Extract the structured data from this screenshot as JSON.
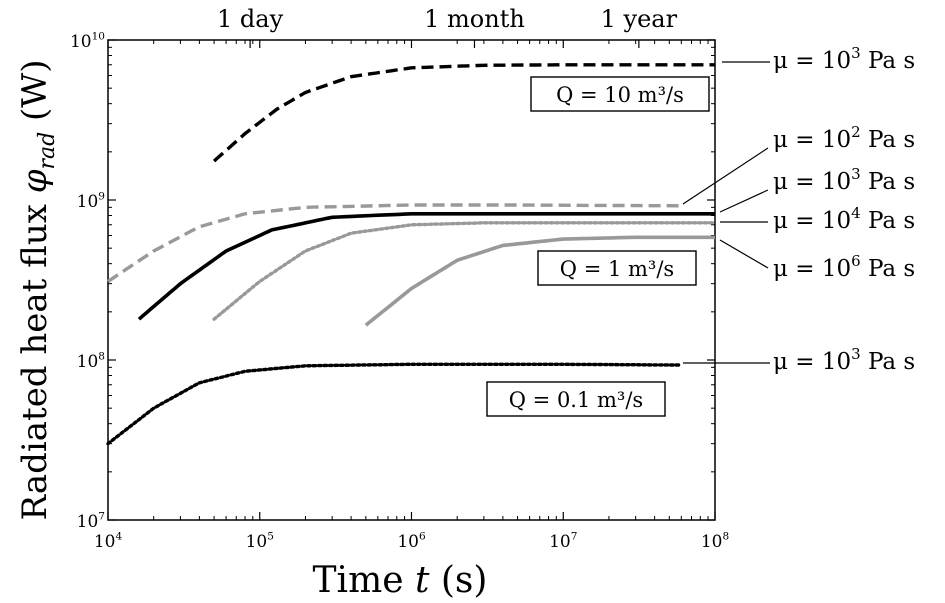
{
  "chart_data": {
    "type": "line",
    "xlabel": "Time t (s)",
    "ylabel": "Radiated heat flux φrad (W)",
    "xscale": "log",
    "yscale": "log",
    "xlim": [
      10000,
      100000000
    ],
    "ylim": [
      10000000,
      10000000000
    ],
    "x_ticks": [
      {
        "value": 10000,
        "label": "10",
        "exp": "4"
      },
      {
        "value": 100000,
        "label": "10",
        "exp": "5"
      },
      {
        "value": 1000000,
        "label": "10",
        "exp": "6"
      },
      {
        "value": 10000000,
        "label": "10",
        "exp": "7"
      },
      {
        "value": 100000000,
        "label": "10",
        "exp": "8"
      }
    ],
    "y_ticks": [
      {
        "value": 10000000,
        "label": "10",
        "exp": "7"
      },
      {
        "value": 100000000,
        "label": "10",
        "exp": "8"
      },
      {
        "value": 1000000000,
        "label": "10",
        "exp": "9"
      },
      {
        "value": 10000000000,
        "label": "10",
        "exp": "10"
      }
    ],
    "top_axis_ticks": [
      {
        "value": 86400,
        "label": "1 day"
      },
      {
        "value": 2600000,
        "label": "1 month"
      },
      {
        "value": 31500000,
        "label": "1 year"
      }
    ],
    "grid": false,
    "series": [
      {
        "group": "Q = 10 m3/s",
        "label": "μ = 10^3 Pa s",
        "color": "#000000",
        "style": "dashed",
        "x": [
          50000,
          80000,
          130000,
          200000,
          400000,
          1000000,
          3000000,
          10000000,
          100000000
        ],
        "y": [
          1750000000,
          2600000000,
          3700000000,
          4700000000,
          5900000000,
          6700000000,
          6950000000,
          7000000000,
          7000000000
        ]
      },
      {
        "group": "Q = 1 m3/s",
        "label": "μ = 10^2 Pa s",
        "color": "#999999",
        "style": "dashed",
        "x": [
          10000,
          20000,
          40000,
          80000,
          200000,
          1000000,
          5000000,
          60000000
        ],
        "y": [
          310000000,
          480000000,
          680000000,
          820000000,
          900000000,
          930000000,
          930000000,
          920000000
        ]
      },
      {
        "group": "Q = 1 m3/s",
        "label": "μ = 10^3 Pa s",
        "color": "#000000",
        "style": "solid",
        "x": [
          16000,
          30000,
          60000,
          120000,
          300000,
          1000000,
          10000000,
          100000000
        ],
        "y": [
          180000000,
          300000000,
          480000000,
          650000000,
          780000000,
          820000000,
          820000000,
          820000000
        ]
      },
      {
        "group": "Q = 1 m3/s",
        "label": "μ = 10^4 Pa s",
        "color": "#999999",
        "style": "dotted",
        "x": [
          50000,
          100000,
          200000,
          400000,
          1000000,
          3000000,
          10000000,
          100000000
        ],
        "y": [
          180000000,
          310000000,
          480000000,
          620000000,
          700000000,
          720000000,
          720000000,
          720000000
        ]
      },
      {
        "group": "Q = 1 m3/s",
        "label": "μ = 10^6 Pa s",
        "color": "#999999",
        "style": "solid",
        "x": [
          500000,
          1000000,
          2000000,
          4000000,
          10000000,
          30000000,
          100000000
        ],
        "y": [
          165000000,
          280000000,
          420000000,
          520000000,
          570000000,
          585000000,
          585000000
        ]
      },
      {
        "group": "Q = 0.1 m3/s",
        "label": "μ = 10^3 Pa s",
        "color": "#000000",
        "style": "dotted",
        "x": [
          10000,
          20000,
          40000,
          80000,
          200000,
          1000000,
          10000000,
          60000000
        ],
        "y": [
          30000000,
          50000000,
          72000000,
          85000000,
          92000000,
          94000000,
          94000000,
          93000000
        ]
      }
    ],
    "group_boxes": [
      {
        "text": "Q = 10 m³/s"
      },
      {
        "text": "Q = 1 m³/s"
      },
      {
        "text": "Q = 0.1 m³/s"
      }
    ],
    "annotations": [
      {
        "base": "μ = 10",
        "exp": "3",
        "unit": " Pa s"
      },
      {
        "base": "μ = 10",
        "exp": "2",
        "unit": " Pa s"
      },
      {
        "base": "μ = 10",
        "exp": "3",
        "unit": " Pa s"
      },
      {
        "base": "μ = 10",
        "exp": "4",
        "unit": " Pa s"
      },
      {
        "base": "μ = 10",
        "exp": "6",
        "unit": " Pa s"
      },
      {
        "base": "μ = 10",
        "exp": "3",
        "unit": " Pa s"
      }
    ]
  }
}
